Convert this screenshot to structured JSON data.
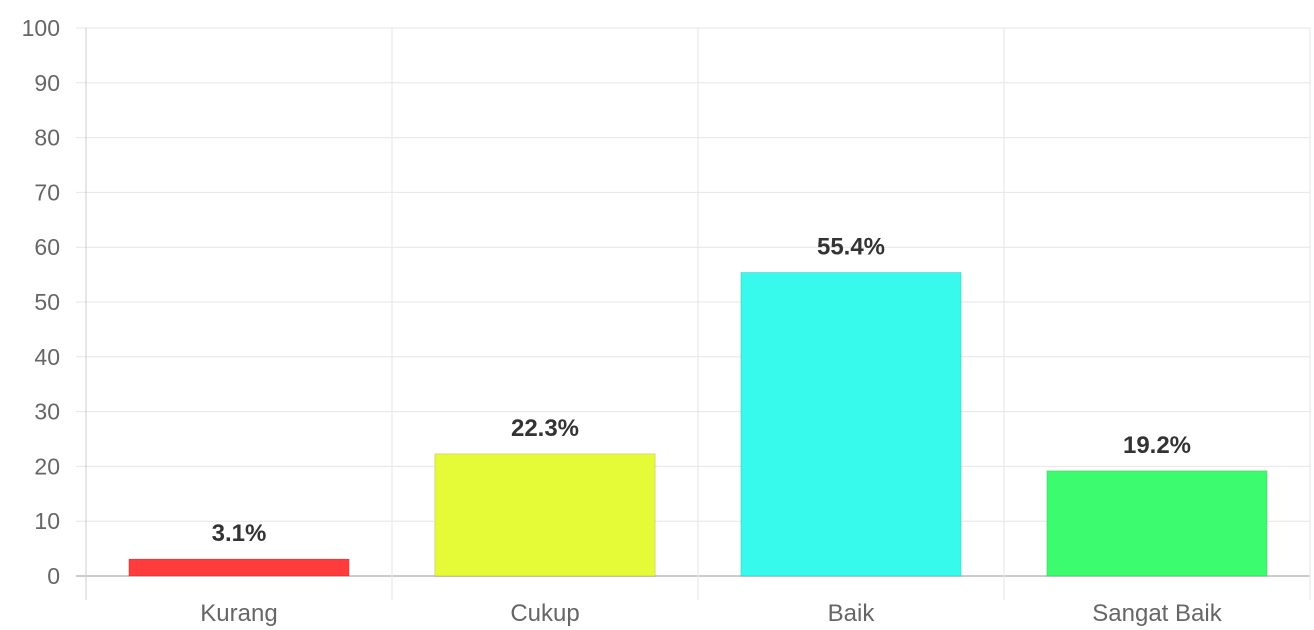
{
  "chart_data": {
    "type": "bar",
    "categories": [
      "Kurang",
      "Cukup",
      "Baik",
      "Sangat Baik"
    ],
    "values": [
      3.1,
      22.3,
      55.4,
      19.2
    ],
    "data_labels": [
      "3.1%",
      "22.3%",
      "55.4%",
      "19.2%"
    ],
    "colors": [
      "#ff3b3b",
      "#e6fb38",
      "#37f9ec",
      "#3dfb6f"
    ],
    "ylim": [
      0,
      100
    ],
    "yticks": [
      0,
      10,
      20,
      30,
      40,
      50,
      60,
      70,
      80,
      90,
      100
    ],
    "grid": true,
    "legend": "none"
  }
}
